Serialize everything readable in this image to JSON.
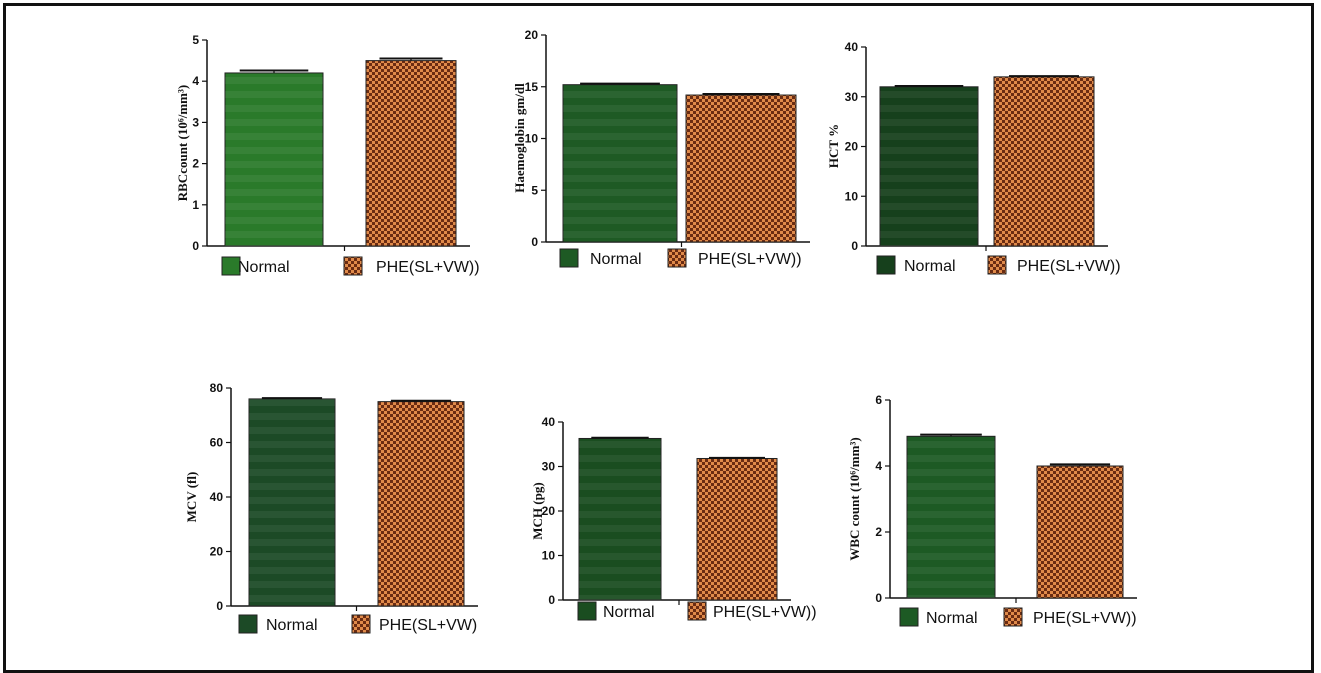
{
  "legend": {
    "normal_label": "Normal",
    "treated_label": "PHE(SL+VW))",
    "normal_color": "#1e5a22",
    "treated_color": "#b5562a"
  },
  "chart_data": [
    {
      "type": "bar",
      "ylabel": "RBCcount (10⁶/mm³)",
      "ylim": [
        0,
        5
      ],
      "ticks": [
        0,
        1,
        2,
        3,
        4,
        5
      ],
      "categories": [
        "Normal",
        "PHE(SL+VW))"
      ],
      "values": [
        4.2,
        4.5
      ],
      "errors": [
        0.06,
        0.05
      ],
      "normal_color": "#2a7a2a",
      "legend_labels": [
        "Normal",
        "PHE(SL+VW))"
      ]
    },
    {
      "type": "bar",
      "ylabel": "Haemoglobin gm/dl",
      "ylim": [
        0,
        20
      ],
      "ticks": [
        0,
        5,
        10,
        15,
        20
      ],
      "categories": [
        "Normal",
        "PHE(SL+VW))"
      ],
      "values": [
        15.2,
        14.2
      ],
      "errors": [
        0.1,
        0.1
      ],
      "normal_color": "#1e5a24",
      "legend_labels": [
        "Normal",
        "PHE(SL+VW))"
      ]
    },
    {
      "type": "bar",
      "ylabel": "HCT %",
      "ylim": [
        0,
        40
      ],
      "ticks": [
        0,
        10,
        20,
        30,
        40
      ],
      "categories": [
        "Normal",
        "PHE(SL+VW))"
      ],
      "values": [
        32,
        34
      ],
      "errors": [
        0.15,
        0.15
      ],
      "normal_color": "#16401c",
      "legend_labels": [
        "Normal",
        "PHE(SL+VW))"
      ]
    },
    {
      "type": "bar",
      "ylabel": "MCV (fl)",
      "ylim": [
        0,
        80
      ],
      "ticks": [
        0,
        20,
        40,
        60,
        80
      ],
      "categories": [
        "Normal",
        "PHE(SL+VW))"
      ],
      "values": [
        76,
        75
      ],
      "errors": [
        0.3,
        0.3
      ],
      "normal_color": "#1c4a26",
      "legend_labels": [
        "Normal",
        "PHE(SL+VW)"
      ]
    },
    {
      "type": "bar",
      "ylabel": "MCH (pg)",
      "ylim": [
        0,
        40
      ],
      "ticks": [
        0,
        10,
        20,
        30,
        40
      ],
      "categories": [
        "Normal",
        "PHE(SL+VW))"
      ],
      "values": [
        36.3,
        31.8
      ],
      "errors": [
        0.15,
        0.15
      ],
      "normal_color": "#1a4d20",
      "legend_labels": [
        "Normal",
        "PHE(SL+VW))"
      ]
    },
    {
      "type": "bar",
      "ylabel": "WBC count (10⁶/mm³)",
      "ylim": [
        0,
        6
      ],
      "ticks": [
        0,
        2,
        4,
        6
      ],
      "categories": [
        "Normal",
        "PHE(SL+VW))"
      ],
      "values": [
        4.9,
        4.0
      ],
      "errors": [
        0.05,
        0.05
      ],
      "normal_color": "#1d5a24",
      "legend_labels": [
        "Normal",
        "PHE(SL+VW))"
      ]
    }
  ]
}
